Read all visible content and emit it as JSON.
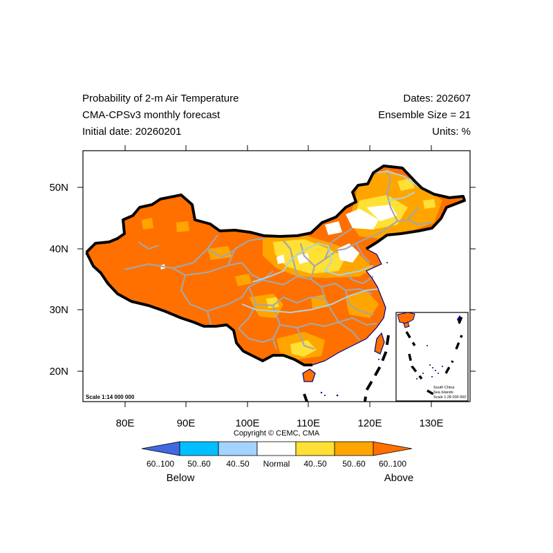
{
  "title": {
    "left": [
      "Probability of 2-m Air Temperature",
      "CMA-CPSv3 monthly forecast",
      "Initial date: 20260201"
    ],
    "right": [
      "Dates: 202607",
      "Ensemble Size = 21",
      "Units: %"
    ]
  },
  "map": {
    "lon_ticks": [
      "80E",
      "90E",
      "100E",
      "110E",
      "120E",
      "130E"
    ],
    "lat_ticks": [
      "50N",
      "40N",
      "30N",
      "20N"
    ],
    "scale_main": "Scale 1:14 000 000",
    "inset_lines": [
      "South China",
      "Sea Islands",
      "Scale 1:28 000 000"
    ],
    "copyright": "Copyright © CEMC, CMA"
  },
  "legend": {
    "labels": [
      "60..100",
      "50..60",
      "40..50",
      "Normal",
      "40..50",
      "50..60",
      "60..100"
    ],
    "below": "Below",
    "above": "Above",
    "colors": [
      "#4169e1",
      "#00bfff",
      "#a3d3ff",
      "#ffffff",
      "#ffe034",
      "#ffa500",
      "#ff7000"
    ]
  },
  "colors": {
    "above_60_100": "#ff7000",
    "above_50_60": "#ffa500",
    "above_40_50": "#ffe034",
    "normal": "#ffffff",
    "province_lines": "#a6a6a6",
    "rivers": "#aad4e6",
    "coast": "#000080"
  }
}
